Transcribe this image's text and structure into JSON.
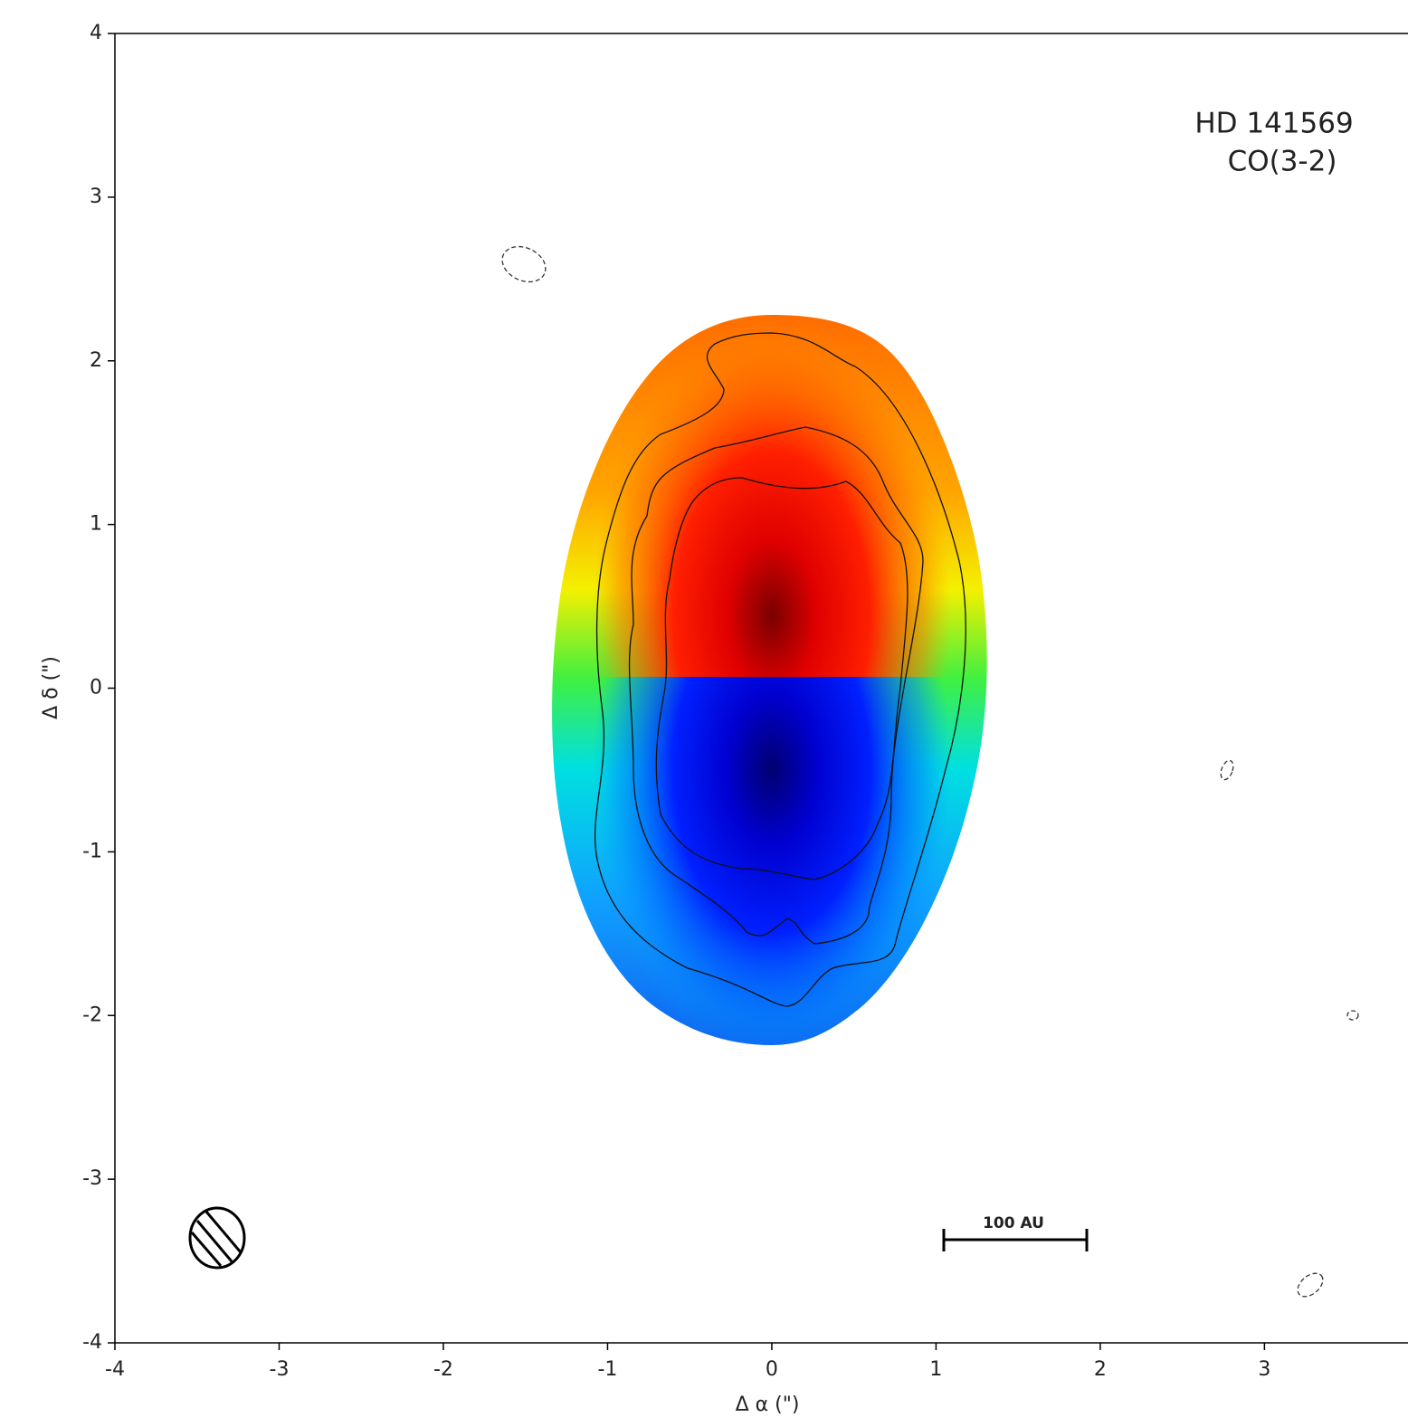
{
  "chart_data": {
    "type": "image",
    "annotations": [
      "HD 141569",
      "CO(3-2)"
    ],
    "scale_bar_label": "100 AU",
    "xlabel": "Δ α (\")",
    "ylabel": "Δ δ (\")",
    "xlim": [
      -4,
      3.83
    ],
    "ylim": [
      -4,
      4
    ],
    "xticks": [
      -4,
      -3,
      -2,
      -1,
      0,
      1,
      2,
      3
    ],
    "yticks": [
      -4,
      -3,
      -2,
      -1,
      0,
      1,
      2,
      3,
      4
    ]
  }
}
